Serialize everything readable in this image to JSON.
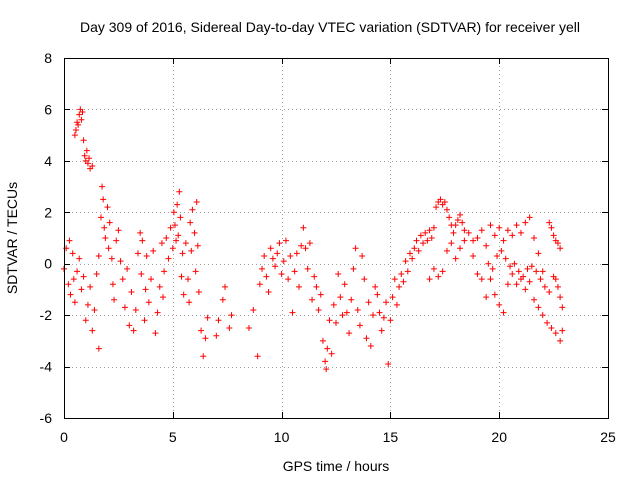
{
  "chart_data": {
    "type": "scatter",
    "title": "Day 309 of 2016, Sidereal Day-to-day VTEC variation (SDTVAR) for receiver yell",
    "xlabel": "GPS time / hours",
    "ylabel": "SDTVAR / TECUs",
    "xlim": [
      0,
      25
    ],
    "ylim": [
      -6,
      8
    ],
    "grid": true,
    "marker": "+",
    "x_ticks": [
      {
        "value": 0,
        "label": "0"
      },
      {
        "value": 5,
        "label": "5"
      },
      {
        "value": 10,
        "label": "10"
      },
      {
        "value": 15,
        "label": "15"
      },
      {
        "value": 20,
        "label": "20"
      },
      {
        "value": 25,
        "label": "25"
      }
    ],
    "y_ticks": [
      {
        "value": -6,
        "label": "-6"
      },
      {
        "value": -4,
        "label": "-4"
      },
      {
        "value": -2,
        "label": "-2"
      },
      {
        "value": 0,
        "label": "0"
      },
      {
        "value": 2,
        "label": "2"
      },
      {
        "value": 4,
        "label": "4"
      },
      {
        "value": 6,
        "label": "6"
      },
      {
        "value": 8,
        "label": "8"
      }
    ],
    "series": [
      {
        "name": "SDTVAR",
        "color": "#ff0000",
        "points": [
          [
            0.0,
            -0.2
          ],
          [
            0.1,
            0.6
          ],
          [
            0.2,
            -0.8
          ],
          [
            0.25,
            0.9
          ],
          [
            0.3,
            -1.2
          ],
          [
            0.4,
            0.4
          ],
          [
            0.45,
            -0.6
          ],
          [
            0.5,
            5.0
          ],
          [
            0.55,
            5.2
          ],
          [
            0.6,
            5.5
          ],
          [
            0.65,
            5.4
          ],
          [
            0.7,
            5.8
          ],
          [
            0.75,
            6.0
          ],
          [
            0.8,
            5.6
          ],
          [
            0.85,
            5.9
          ],
          [
            0.9,
            4.8
          ],
          [
            0.95,
            4.2
          ],
          [
            1.0,
            4.0
          ],
          [
            1.05,
            4.4
          ],
          [
            1.1,
            3.9
          ],
          [
            1.15,
            4.1
          ],
          [
            1.2,
            3.7
          ],
          [
            1.3,
            3.8
          ],
          [
            0.5,
            -1.5
          ],
          [
            0.6,
            -0.3
          ],
          [
            0.7,
            0.2
          ],
          [
            0.8,
            -1.0
          ],
          [
            0.9,
            -0.5
          ],
          [
            1.0,
            -2.2
          ],
          [
            1.1,
            -1.6
          ],
          [
            1.2,
            -0.9
          ],
          [
            1.3,
            -2.6
          ],
          [
            1.4,
            -1.8
          ],
          [
            1.5,
            -0.4
          ],
          [
            1.6,
            0.3
          ],
          [
            1.6,
            -3.3
          ],
          [
            1.7,
            1.8
          ],
          [
            1.75,
            3.0
          ],
          [
            1.8,
            2.5
          ],
          [
            1.85,
            1.4
          ],
          [
            1.9,
            1.0
          ],
          [
            2.0,
            2.2
          ],
          [
            2.05,
            0.6
          ],
          [
            2.1,
            1.6
          ],
          [
            2.2,
            0.2
          ],
          [
            2.25,
            -0.8
          ],
          [
            2.3,
            -1.4
          ],
          [
            2.4,
            0.9
          ],
          [
            2.5,
            1.3
          ],
          [
            2.6,
            0.1
          ],
          [
            2.7,
            -0.6
          ],
          [
            2.8,
            -1.7
          ],
          [
            2.9,
            -0.2
          ],
          [
            3.0,
            -2.4
          ],
          [
            3.1,
            -1.1
          ],
          [
            3.2,
            -2.6
          ],
          [
            3.3,
            -1.8
          ],
          [
            3.4,
            0.4
          ],
          [
            3.5,
            1.2
          ],
          [
            3.55,
            -0.4
          ],
          [
            3.6,
            0.9
          ],
          [
            3.7,
            -2.2
          ],
          [
            3.75,
            -1.0
          ],
          [
            3.8,
            0.3
          ],
          [
            3.9,
            -1.5
          ],
          [
            4.0,
            -0.6
          ],
          [
            4.1,
            0.5
          ],
          [
            4.2,
            -2.7
          ],
          [
            4.3,
            -1.9
          ],
          [
            4.4,
            -0.9
          ],
          [
            4.5,
            0.8
          ],
          [
            4.55,
            -1.3
          ],
          [
            4.6,
            -0.3
          ],
          [
            4.7,
            1.0
          ],
          [
            4.8,
            0.2
          ],
          [
            4.9,
            1.4
          ],
          [
            5.0,
            0.6
          ],
          [
            5.05,
            2.0
          ],
          [
            5.1,
            1.5
          ],
          [
            5.15,
            0.9
          ],
          [
            5.2,
            2.3
          ],
          [
            5.25,
            1.1
          ],
          [
            5.3,
            2.8
          ],
          [
            5.35,
            1.8
          ],
          [
            5.4,
            -0.5
          ],
          [
            5.45,
            0.4
          ],
          [
            5.5,
            -1.2
          ],
          [
            5.6,
            0.8
          ],
          [
            5.7,
            -0.6
          ],
          [
            5.75,
            -1.5
          ],
          [
            5.8,
            1.6
          ],
          [
            5.85,
            0.5
          ],
          [
            5.9,
            2.1
          ],
          [
            6.0,
            1.2
          ],
          [
            6.05,
            -0.3
          ],
          [
            6.1,
            2.4
          ],
          [
            6.15,
            0.7
          ],
          [
            6.2,
            -1.1
          ],
          [
            6.3,
            -2.6
          ],
          [
            6.4,
            -3.6
          ],
          [
            6.5,
            -2.9
          ],
          [
            6.6,
            -2.1
          ],
          [
            7.0,
            -2.8
          ],
          [
            7.1,
            -2.2
          ],
          [
            7.3,
            -1.4
          ],
          [
            7.4,
            -0.9
          ],
          [
            7.6,
            -2.5
          ],
          [
            7.7,
            -2.0
          ],
          [
            8.5,
            -2.5
          ],
          [
            8.7,
            -1.8
          ],
          [
            8.9,
            -3.6
          ],
          [
            9.0,
            -0.8
          ],
          [
            9.1,
            -0.2
          ],
          [
            9.2,
            0.3
          ],
          [
            9.3,
            -0.5
          ],
          [
            9.4,
            -1.1
          ],
          [
            9.5,
            0.6
          ],
          [
            9.6,
            0.2
          ],
          [
            9.7,
            -0.1
          ],
          [
            9.8,
            0.4
          ],
          [
            9.9,
            0.8
          ],
          [
            10.0,
            -0.4
          ],
          [
            10.1,
            0.1
          ],
          [
            10.2,
            0.9
          ],
          [
            10.3,
            -0.6
          ],
          [
            10.4,
            0.3
          ],
          [
            10.5,
            -1.9
          ],
          [
            10.6,
            -0.3
          ],
          [
            10.7,
            0.4
          ],
          [
            10.8,
            -0.9
          ],
          [
            10.9,
            0.7
          ],
          [
            11.0,
            1.4
          ],
          [
            11.1,
            0.6
          ],
          [
            11.2,
            -0.2
          ],
          [
            11.3,
            0.8
          ],
          [
            11.4,
            -1.4
          ],
          [
            11.5,
            -0.5
          ],
          [
            11.6,
            -0.9
          ],
          [
            11.7,
            -1.8
          ],
          [
            11.8,
            -1.2
          ],
          [
            11.9,
            -3.0
          ],
          [
            12.0,
            -3.8
          ],
          [
            12.05,
            -4.1
          ],
          [
            12.1,
            -3.3
          ],
          [
            12.2,
            -2.2
          ],
          [
            12.3,
            -3.5
          ],
          [
            12.4,
            -1.6
          ],
          [
            12.5,
            -2.3
          ],
          [
            12.6,
            -0.4
          ],
          [
            12.7,
            -1.3
          ],
          [
            12.8,
            -2.0
          ],
          [
            12.9,
            -0.8
          ],
          [
            13.0,
            -1.9
          ],
          [
            13.1,
            -2.7
          ],
          [
            13.2,
            -1.4
          ],
          [
            13.3,
            -0.2
          ],
          [
            13.4,
            0.6
          ],
          [
            13.5,
            -1.8
          ],
          [
            13.6,
            -2.4
          ],
          [
            13.7,
            0.3
          ],
          [
            13.8,
            -0.6
          ],
          [
            13.9,
            -2.9
          ],
          [
            14.0,
            -1.5
          ],
          [
            14.1,
            -3.2
          ],
          [
            14.2,
            -2.0
          ],
          [
            14.3,
            -0.9
          ],
          [
            14.4,
            -1.2
          ],
          [
            14.5,
            -1.9
          ],
          [
            14.6,
            -2.6
          ],
          [
            14.7,
            -2.1
          ],
          [
            14.8,
            -1.5
          ],
          [
            14.9,
            -3.9
          ],
          [
            15.0,
            -2.2
          ],
          [
            15.1,
            -1.3
          ],
          [
            15.2,
            -0.6
          ],
          [
            15.3,
            -1.6
          ],
          [
            15.4,
            -0.9
          ],
          [
            15.5,
            -0.4
          ],
          [
            15.6,
            -0.7
          ],
          [
            15.7,
            0.1
          ],
          [
            15.8,
            -0.3
          ],
          [
            15.9,
            0.4
          ],
          [
            16.0,
            0.2
          ],
          [
            16.1,
            0.6
          ],
          [
            16.2,
            0.9
          ],
          [
            16.3,
            0.5
          ],
          [
            16.4,
            1.1
          ],
          [
            16.5,
            0.8
          ],
          [
            16.6,
            1.2
          ],
          [
            16.7,
            0.9
          ],
          [
            16.8,
            1.3
          ],
          [
            16.9,
            1.0
          ],
          [
            17.0,
            1.4
          ],
          [
            17.1,
            2.2
          ],
          [
            17.2,
            2.4
          ],
          [
            17.3,
            2.5
          ],
          [
            17.4,
            2.3
          ],
          [
            17.5,
            2.4
          ],
          [
            17.6,
            2.1
          ],
          [
            17.7,
            1.8
          ],
          [
            17.8,
            1.5
          ],
          [
            17.9,
            1.2
          ],
          [
            18.0,
            1.5
          ],
          [
            18.1,
            1.7
          ],
          [
            18.2,
            1.9
          ],
          [
            18.3,
            1.6
          ],
          [
            18.4,
            1.3
          ],
          [
            16.8,
            -0.6
          ],
          [
            17.0,
            -0.2
          ],
          [
            17.2,
            -0.5
          ],
          [
            17.4,
            -0.3
          ],
          [
            17.6,
            0.5
          ],
          [
            17.8,
            0.8
          ],
          [
            18.0,
            0.2
          ],
          [
            18.2,
            0.6
          ],
          [
            18.4,
            0.9
          ],
          [
            18.6,
            1.2
          ],
          [
            18.8,
            0.9
          ],
          [
            19.0,
            1.0
          ],
          [
            19.2,
            1.3
          ],
          [
            19.4,
            0.7
          ],
          [
            19.6,
            1.5
          ],
          [
            19.8,
            1.1
          ],
          [
            20.0,
            1.4
          ],
          [
            20.2,
            0.9
          ],
          [
            20.4,
            1.3
          ],
          [
            20.6,
            1.1
          ],
          [
            20.8,
            1.5
          ],
          [
            21.0,
            1.2
          ],
          [
            21.2,
            1.6
          ],
          [
            21.4,
            1.8
          ],
          [
            21.6,
            1.0
          ],
          [
            21.8,
            0.4
          ],
          [
            22.0,
            -0.3
          ],
          [
            18.8,
            0.3
          ],
          [
            19.0,
            -0.4
          ],
          [
            19.2,
            -0.6
          ],
          [
            19.4,
            -1.3
          ],
          [
            19.6,
            -0.6
          ],
          [
            19.8,
            -1.2
          ],
          [
            20.0,
            -1.6
          ],
          [
            20.2,
            -1.9
          ],
          [
            20.4,
            -0.8
          ],
          [
            20.6,
            -0.4
          ],
          [
            20.8,
            -0.8
          ],
          [
            21.0,
            -0.6
          ],
          [
            21.2,
            -1.0
          ],
          [
            21.4,
            -0.7
          ],
          [
            21.6,
            -1.4
          ],
          [
            21.8,
            -1.7
          ],
          [
            22.0,
            -2.0
          ],
          [
            22.2,
            -2.3
          ],
          [
            22.4,
            -2.5
          ],
          [
            22.6,
            -2.7
          ],
          [
            22.8,
            -3.0
          ],
          [
            22.9,
            -2.6
          ],
          [
            22.3,
            1.6
          ],
          [
            22.4,
            1.4
          ],
          [
            22.5,
            1.1
          ],
          [
            22.6,
            0.9
          ],
          [
            22.7,
            0.8
          ],
          [
            22.8,
            0.6
          ],
          [
            22.5,
            -0.5
          ],
          [
            22.6,
            -0.6
          ],
          [
            22.7,
            -0.9
          ],
          [
            22.8,
            -1.3
          ],
          [
            22.9,
            -1.7
          ],
          [
            19.5,
            0.0
          ],
          [
            19.7,
            -0.2
          ],
          [
            19.9,
            0.3
          ],
          [
            20.1,
            0.5
          ],
          [
            20.3,
            0.2
          ],
          [
            20.5,
            -0.1
          ],
          [
            20.7,
            0.0
          ],
          [
            20.9,
            -0.3
          ],
          [
            21.1,
            -0.5
          ],
          [
            21.3,
            -0.2
          ],
          [
            21.5,
            -0.1
          ],
          [
            21.7,
            -0.3
          ],
          [
            21.9,
            -0.6
          ],
          [
            22.1,
            -0.9
          ],
          [
            22.3,
            -1.1
          ]
        ]
      }
    ]
  }
}
